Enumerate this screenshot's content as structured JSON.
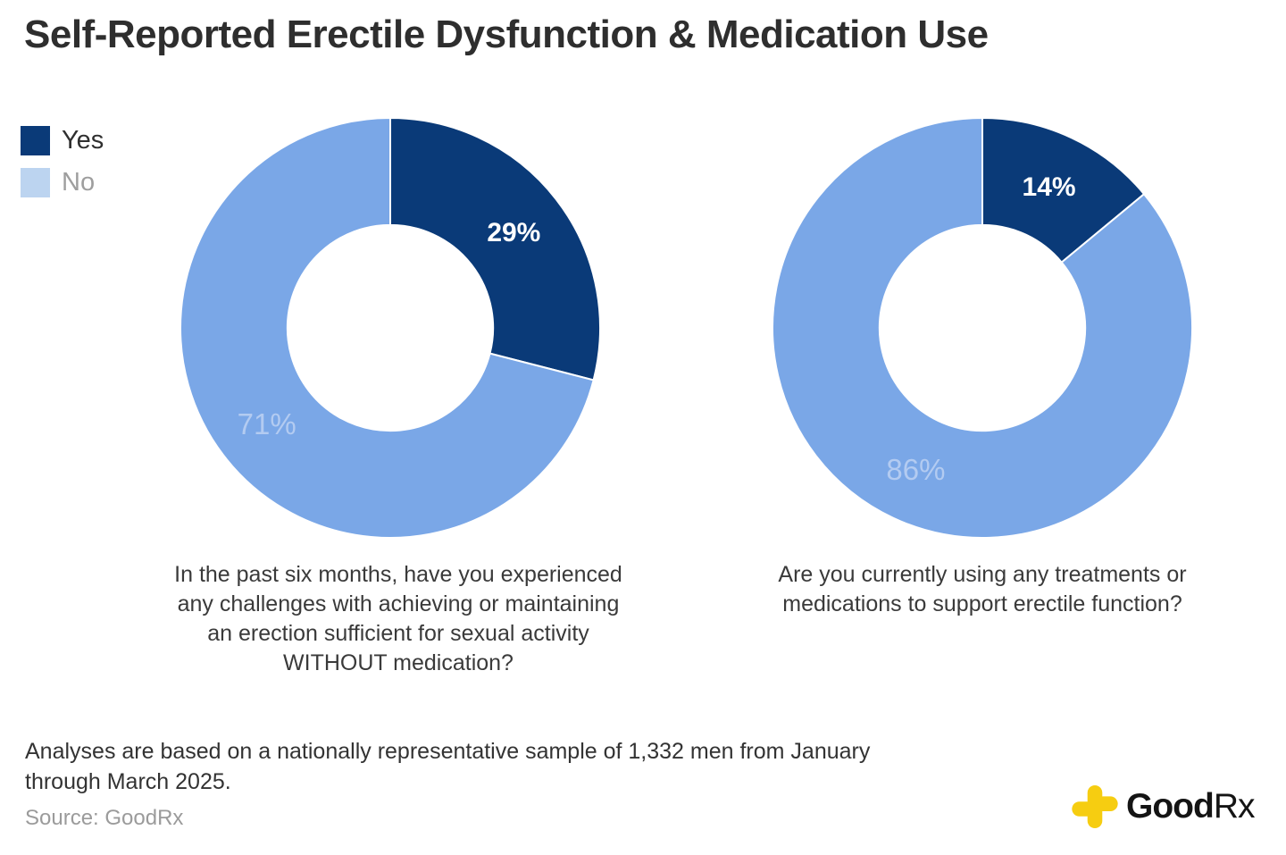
{
  "title": "Self-Reported Erectile Dysfunction & Medication Use",
  "legend": {
    "items": [
      {
        "label": "Yes",
        "swatch_color": "#0a3a78",
        "text_color": "#2f2f2f"
      },
      {
        "label": "No",
        "swatch_color": "#bcd4f0",
        "text_color": "#9e9e9e"
      }
    ]
  },
  "chart_data": [
    {
      "type": "pie",
      "subtype": "donut",
      "categories": [
        "Yes",
        "No"
      ],
      "values": [
        29,
        71
      ],
      "labels": [
        "29%",
        "71%"
      ],
      "colors": [
        "#0a3a78",
        "#7aa7e7"
      ],
      "label_colors": [
        "#ffffff",
        "#b3cbf1"
      ],
      "label_weights": [
        "bold",
        "normal"
      ],
      "start_angle": 0,
      "inner_radius_ratio": 0.49,
      "question_lines": [
        "In the past six months, have you experienced",
        "any challenges with achieving or maintaining",
        "an erection sufficient for sexual activity",
        "WITHOUT medication?"
      ]
    },
    {
      "type": "pie",
      "subtype": "donut",
      "categories": [
        "Yes",
        "No"
      ],
      "values": [
        14,
        86
      ],
      "labels": [
        "14%",
        "86%"
      ],
      "colors": [
        "#0a3a78",
        "#7aa7e7"
      ],
      "label_colors": [
        "#ffffff",
        "#b3cbf1"
      ],
      "label_weights": [
        "bold",
        "normal"
      ],
      "start_angle": 0,
      "inner_radius_ratio": 0.49,
      "question_lines": [
        "Are you currently using any treatments or",
        "medications to support erectile function?"
      ]
    }
  ],
  "footnote_lines": [
    "Analyses are based on a nationally representative sample of 1,332 men from January",
    "through March 2025."
  ],
  "source": "Source: GoodRx",
  "logo": {
    "text_bold": "Good",
    "text_regular": "Rx",
    "cross_color": "#f6cd11"
  }
}
